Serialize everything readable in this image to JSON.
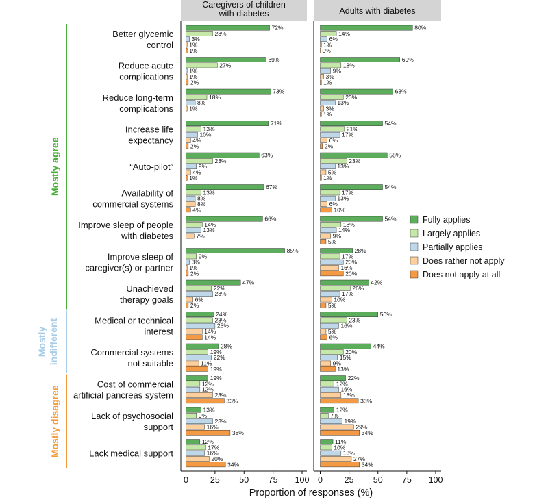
{
  "chart_data": {
    "type": "bar",
    "orientation": "horizontal",
    "xlabel": "Proportion of responses (%)",
    "xlim": [
      0,
      100
    ],
    "xticks": [
      0,
      25,
      50,
      75,
      100
    ],
    "grid": false,
    "legend_position": "right",
    "series": [
      {
        "name": "Fully applies",
        "color": "#5cad5c"
      },
      {
        "name": "Largely applies",
        "color": "#c5e8a9"
      },
      {
        "name": "Partially applies",
        "color": "#bed8ea"
      },
      {
        "name": "Does rather not apply",
        "color": "#fccf9c"
      },
      {
        "name": "Does not apply at all",
        "color": "#f49a44"
      }
    ],
    "panels": [
      {
        "title_lines": [
          "Caregivers of children",
          "with diabetes"
        ]
      },
      {
        "title_lines": [
          "Adults with diabetes"
        ]
      }
    ],
    "groups": [
      {
        "label": "Mostly agree",
        "label_lines": [
          "Mostly agree"
        ],
        "color": "#4caf3c"
      },
      {
        "label": "Mostly indifferent",
        "label_lines": [
          "Mostly",
          "indifferent"
        ],
        "color": "#a9cce6"
      },
      {
        "label": "Mostly disagree",
        "label_lines": [
          "Mostly disagree"
        ],
        "color": "#f39a3a"
      }
    ],
    "categories": [
      {
        "label_lines": [
          "Better glycemic",
          "control"
        ],
        "group": 0,
        "values": [
          [
            72,
            23,
            3,
            1,
            1
          ],
          [
            80,
            14,
            6,
            1,
            0
          ]
        ]
      },
      {
        "label_lines": [
          "Reduce acute",
          "complications"
        ],
        "group": 0,
        "values": [
          [
            69,
            27,
            1,
            1,
            2
          ],
          [
            69,
            18,
            9,
            3,
            1
          ]
        ]
      },
      {
        "label_lines": [
          "Reduce long-term",
          "complications"
        ],
        "group": 0,
        "values": [
          [
            73,
            18,
            8,
            1,
            null
          ],
          [
            63,
            20,
            13,
            3,
            1
          ]
        ]
      },
      {
        "label_lines": [
          "Increase life",
          "expectancy"
        ],
        "group": 0,
        "values": [
          [
            71,
            13,
            10,
            4,
            2
          ],
          [
            54,
            21,
            17,
            6,
            2
          ]
        ]
      },
      {
        "label_lines": [
          "“Auto-pilot”"
        ],
        "group": 0,
        "values": [
          [
            63,
            23,
            9,
            4,
            1
          ],
          [
            58,
            23,
            13,
            5,
            1
          ]
        ]
      },
      {
        "label_lines": [
          "Availability of",
          "commercial systems"
        ],
        "group": 0,
        "values": [
          [
            67,
            13,
            8,
            8,
            4
          ],
          [
            54,
            17,
            13,
            6,
            10
          ]
        ]
      },
      {
        "label_lines": [
          "Improve sleep of people",
          "with diabetes"
        ],
        "group": 0,
        "values": [
          [
            66,
            14,
            13,
            7,
            null
          ],
          [
            54,
            18,
            14,
            9,
            5
          ]
        ]
      },
      {
        "label_lines": [
          "Improve sleep of",
          "caregiver(s) or partner"
        ],
        "group": 0,
        "values": [
          [
            85,
            9,
            3,
            1,
            2
          ],
          [
            28,
            17,
            20,
            16,
            20
          ]
        ]
      },
      {
        "label_lines": [
          "Unachieved",
          "therapy goals"
        ],
        "group": 0,
        "values": [
          [
            47,
            22,
            23,
            6,
            2
          ],
          [
            42,
            26,
            17,
            10,
            5
          ]
        ]
      },
      {
        "label_lines": [
          "Medical or technical",
          "interest"
        ],
        "group": 1,
        "values": [
          [
            24,
            23,
            25,
            14,
            14
          ],
          [
            50,
            23,
            16,
            5,
            6
          ]
        ]
      },
      {
        "label_lines": [
          "Commercial systems",
          "not suitable"
        ],
        "group": 1,
        "values": [
          [
            28,
            19,
            22,
            11,
            19
          ],
          [
            44,
            20,
            15,
            9,
            13
          ]
        ]
      },
      {
        "label_lines": [
          "Cost of commercial",
          "artificial pancreas system"
        ],
        "group": 2,
        "values": [
          [
            19,
            12,
            12,
            23,
            33
          ],
          [
            22,
            12,
            16,
            18,
            33
          ]
        ]
      },
      {
        "label_lines": [
          "Lack of psychosocial",
          "support"
        ],
        "group": 2,
        "values": [
          [
            13,
            9,
            23,
            16,
            38
          ],
          [
            12,
            7,
            19,
            29,
            34
          ]
        ]
      },
      {
        "label_lines": [
          "Lack medical support"
        ],
        "group": 2,
        "values": [
          [
            12,
            17,
            16,
            20,
            34
          ],
          [
            11,
            10,
            18,
            27,
            34
          ]
        ]
      }
    ]
  }
}
